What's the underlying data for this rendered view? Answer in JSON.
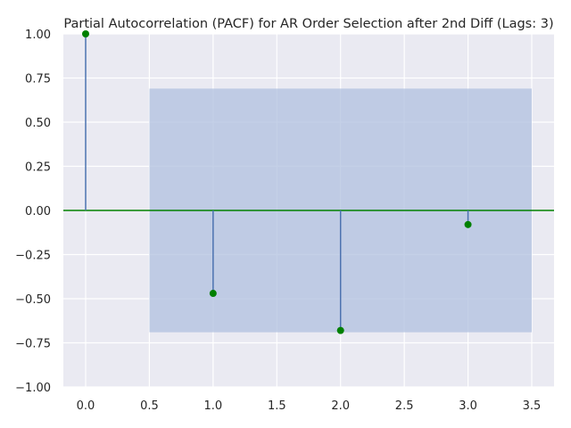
{
  "chart_data": {
    "type": "stem",
    "title": "Partial Autocorrelation (PACF) for AR Order Selection after 2nd Diff (Lags: 3)",
    "xlabel": "",
    "ylabel": "",
    "xlim": [
      -0.175,
      3.675
    ],
    "ylim": [
      -1.0,
      1.0
    ],
    "x_ticks": [
      "0.0",
      "0.5",
      "1.0",
      "1.5",
      "2.0",
      "2.5",
      "3.0",
      "3.5"
    ],
    "y_ticks": [
      "1.00",
      "0.75",
      "0.50",
      "0.25",
      "0.00",
      "−0.25",
      "−0.50",
      "−0.75",
      "−1.00"
    ],
    "grid": true,
    "lags": [
      0,
      1,
      2,
      3
    ],
    "values": [
      1.0,
      -0.47,
      -0.68,
      -0.08
    ],
    "confidence_band": {
      "x": [
        0.5,
        3.5
      ],
      "upper": 0.69,
      "lower": -0.69
    },
    "colors": {
      "background": "#eaeaf2",
      "grid": "#ffffff",
      "stem": "#4c72b0",
      "marker": "#008000",
      "zero_line": "#008000",
      "band": "#b0c0df"
    }
  }
}
